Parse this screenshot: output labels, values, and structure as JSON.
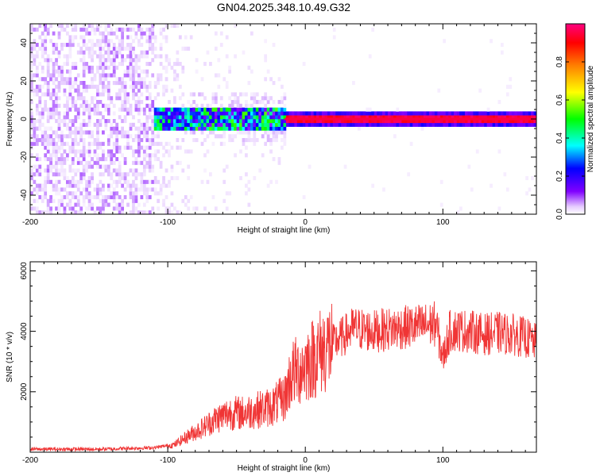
{
  "chart_data": [
    {
      "type": "heatmap",
      "title": "GN04.2025.348.10.49.G32",
      "xlabel": "Height of straight line (km)",
      "ylabel": "Frequency (Hz)",
      "xlim": [
        -200,
        168
      ],
      "ylim": [
        -50,
        50
      ],
      "xticks": [
        -200,
        -100,
        0,
        100
      ],
      "yticks": [
        -40,
        -20,
        0,
        20,
        40
      ],
      "colorbar": {
        "label": "Normalized spectral amplitude",
        "range": [
          0,
          1
        ],
        "ticks": [
          "0.0",
          "0.2",
          "0.4",
          "0.6",
          "0.8"
        ],
        "tick_values": [
          0.0,
          0.2,
          0.4,
          0.6,
          0.8
        ],
        "colors": [
          "#ffffff",
          "#e6ccff",
          "#8000ff",
          "#0000ff",
          "#00ffff",
          "#00ff00",
          "#ffff00",
          "#ff8000",
          "#ff0000",
          "#ff0080"
        ]
      },
      "regions": [
        {
          "name": "noise",
          "x": [
            -200,
            -85
          ],
          "description_level": 0.1
        },
        {
          "name": "broadband signal",
          "x": [
            -110,
            -15
          ],
          "freq_halfwidth_hz": 4,
          "level": 0.45
        },
        {
          "name": "narrow carrier",
          "x": [
            -15,
            168
          ],
          "freq_hz": 0,
          "level": 0.95
        }
      ]
    },
    {
      "type": "line",
      "xlabel": "Height of straight line (km)",
      "ylabel": "SNR (10 * v/v)",
      "xlim": [
        -200,
        168
      ],
      "ylim": [
        0,
        6300
      ],
      "xticks": [
        -200,
        -100,
        0,
        100
      ],
      "yticks": [
        2000,
        4000,
        6000
      ],
      "color": "#f03535",
      "series": [
        {
          "name": "SNR",
          "x": [
            -200,
            -150,
            -110,
            -95,
            -85,
            -75,
            -65,
            -55,
            -45,
            -35,
            -25,
            -15,
            -10,
            -5,
            0,
            10,
            20,
            25,
            35,
            50,
            65,
            80,
            95,
            100,
            105,
            110,
            120,
            130,
            140,
            150,
            160,
            168
          ],
          "values": [
            100,
            100,
            150,
            250,
            550,
            800,
            1100,
            1300,
            1300,
            1400,
            1500,
            1800,
            2600,
            2700,
            2900,
            3300,
            3600,
            3750,
            4100,
            4000,
            4100,
            4150,
            4250,
            3100,
            4000,
            4050,
            4000,
            3900,
            3950,
            3900,
            3800,
            3600
          ]
        }
      ]
    }
  ]
}
